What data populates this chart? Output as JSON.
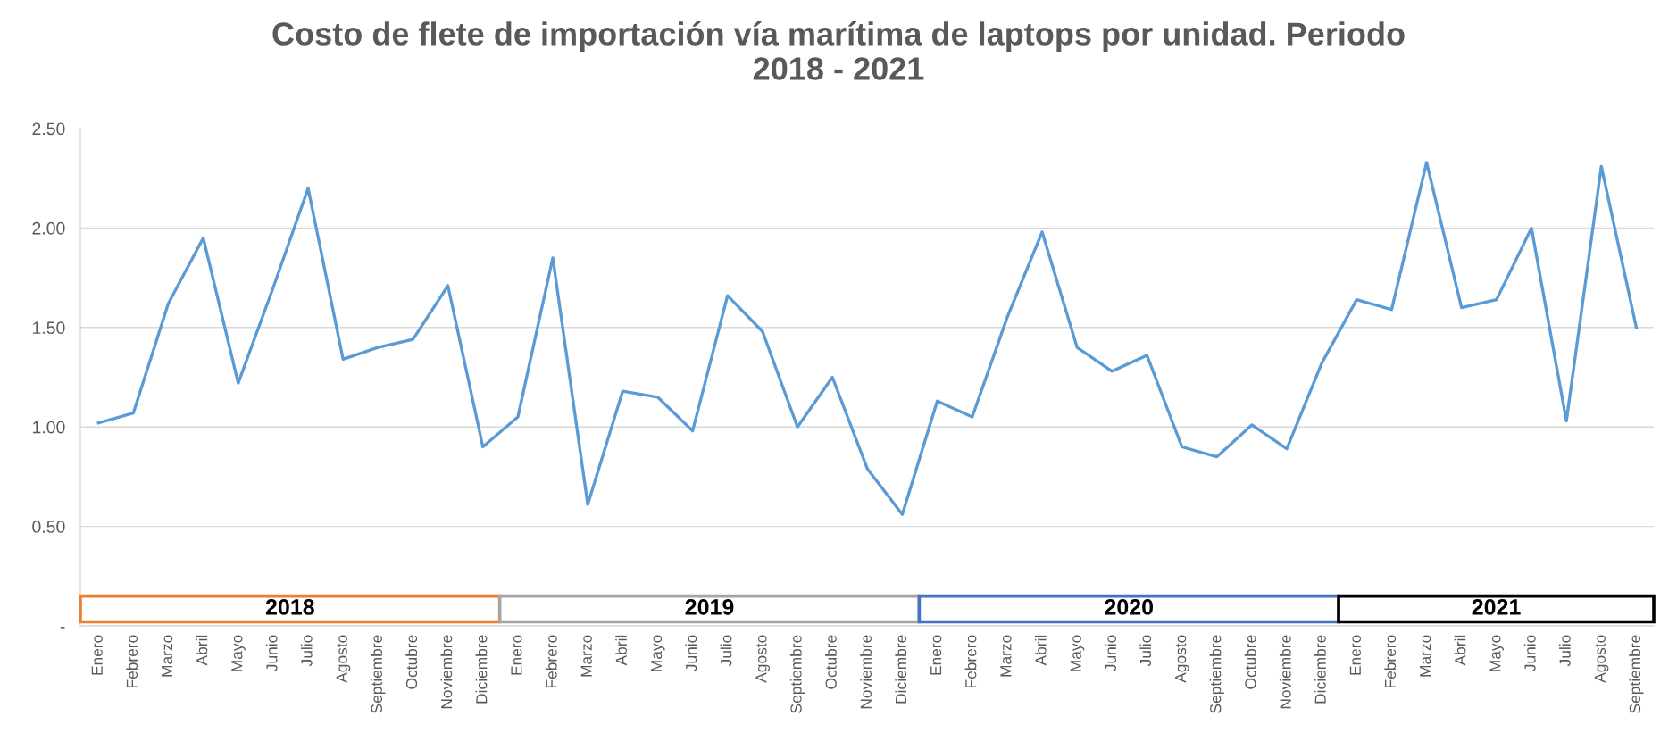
{
  "chart_data": {
    "type": "line",
    "title": "Costo de flete de importación vía marítima de laptops por unidad. Periodo\n2018 - 2021",
    "x": [
      "2018-01",
      "2018-02",
      "2018-03",
      "2018-04",
      "2018-05",
      "2018-06",
      "2018-07",
      "2018-08",
      "2018-09",
      "2018-10",
      "2018-11",
      "2018-12",
      "2019-01",
      "2019-02",
      "2019-03",
      "2019-04",
      "2019-05",
      "2019-06",
      "2019-07",
      "2019-08",
      "2019-09",
      "2019-10",
      "2019-11",
      "2019-12",
      "2020-01",
      "2020-02",
      "2020-03",
      "2020-04",
      "2020-05",
      "2020-06",
      "2020-07",
      "2020-08",
      "2020-09",
      "2020-10",
      "2020-11",
      "2020-12",
      "2021-01",
      "2021-02",
      "2021-03",
      "2021-04",
      "2021-05",
      "2021-06",
      "2021-07",
      "2021-08",
      "2021-09"
    ],
    "series": [
      {
        "color": "#5b9bd5",
        "values": [
          1.02,
          1.07,
          1.62,
          1.95,
          1.22,
          1.7,
          2.2,
          1.34,
          1.4,
          1.44,
          1.71,
          0.9,
          1.05,
          1.85,
          0.61,
          1.18,
          1.15,
          0.98,
          1.66,
          1.48,
          1.0,
          1.25,
          0.79,
          0.56,
          1.13,
          1.05,
          1.55,
          1.98,
          1.4,
          1.28,
          1.36,
          0.9,
          0.85,
          1.01,
          0.89,
          1.32,
          1.64,
          1.59,
          2.33,
          1.6,
          1.64,
          2.0,
          1.03,
          2.31,
          1.5
        ]
      }
    ],
    "xlim": [
      "2017-12-16",
      "2021-09-16"
    ],
    "xticks": [
      {
        "value": "2018-01",
        "label": "Enero"
      },
      {
        "value": "2018-02",
        "label": "Febrero"
      },
      {
        "value": "2018-03",
        "label": "Marzo"
      },
      {
        "value": "2018-04",
        "label": "Abril"
      },
      {
        "value": "2018-05",
        "label": "Mayo"
      },
      {
        "value": "2018-06",
        "label": "Junio"
      },
      {
        "value": "2018-07",
        "label": "Julio"
      },
      {
        "value": "2018-08",
        "label": "Agosto"
      },
      {
        "value": "2018-09",
        "label": "Septiembre"
      },
      {
        "value": "2018-10",
        "label": "Octubre"
      },
      {
        "value": "2018-11",
        "label": "Noviembre"
      },
      {
        "value": "2018-12",
        "label": "Diciembre"
      },
      {
        "value": "2019-01",
        "label": "Enero"
      },
      {
        "value": "2019-02",
        "label": "Febrero"
      },
      {
        "value": "2019-03",
        "label": "Marzo"
      },
      {
        "value": "2019-04",
        "label": "Abril"
      },
      {
        "value": "2019-05",
        "label": "Mayo"
      },
      {
        "value": "2019-06",
        "label": "Junio"
      },
      {
        "value": "2019-07",
        "label": "Julio"
      },
      {
        "value": "2019-08",
        "label": "Agosto"
      },
      {
        "value": "2019-09",
        "label": "Septiembre"
      },
      {
        "value": "2019-10",
        "label": "Octubre"
      },
      {
        "value": "2019-11",
        "label": "Noviembre"
      },
      {
        "value": "2019-12",
        "label": "Diciembre"
      },
      {
        "value": "2020-01",
        "label": "Enero"
      },
      {
        "value": "2020-02",
        "label": "Febrero"
      },
      {
        "value": "2020-03",
        "label": "Marzo"
      },
      {
        "value": "2020-04",
        "label": "Abril"
      },
      {
        "value": "2020-05",
        "label": "Mayo"
      },
      {
        "value": "2020-06",
        "label": "Junio"
      },
      {
        "value": "2020-07",
        "label": "Julio"
      },
      {
        "value": "2020-08",
        "label": "Agosto"
      },
      {
        "value": "2020-09",
        "label": "Septiembre"
      },
      {
        "value": "2020-10",
        "label": "Octubre"
      },
      {
        "value": "2020-11",
        "label": "Noviembre"
      },
      {
        "value": "2020-12",
        "label": "Diciembre"
      },
      {
        "value": "2021-01",
        "label": "Enero"
      },
      {
        "value": "2021-02",
        "label": "Febrero"
      },
      {
        "value": "2021-03",
        "label": "Marzo"
      },
      {
        "value": "2021-04",
        "label": "Abril"
      },
      {
        "value": "2021-05",
        "label": "Mayo"
      },
      {
        "value": "2021-06",
        "label": "Junio"
      },
      {
        "value": "2021-07",
        "label": "Julio"
      },
      {
        "value": "2021-08",
        "label": "Agosto"
      },
      {
        "value": "2021-09",
        "label": "Septiembre"
      }
    ],
    "ylim": [
      0,
      2.5
    ],
    "yticks": [
      {
        "value": 0,
        "label": "-"
      },
      {
        "value": 0.5,
        "label": "0.50"
      },
      {
        "value": 1.0,
        "label": "1.00"
      },
      {
        "value": 1.5,
        "label": "1.50"
      },
      {
        "value": 2.0,
        "label": "2.00"
      },
      {
        "value": 2.5,
        "label": "2.50"
      }
    ],
    "grid": "y",
    "marker": "none",
    "line_style": "solid",
    "bands": [
      {
        "axis": "x",
        "from": "2017-12-16",
        "to": "2018-12-16",
        "label": "2018",
        "color": "#ed7d31"
      },
      {
        "axis": "x",
        "from": "2018-12-16",
        "to": "2019-12-16",
        "label": "2019",
        "color": "#a5a5a5"
      },
      {
        "axis": "x",
        "from": "2019-12-16",
        "to": "2020-12-16",
        "label": "2020",
        "color": "#4472c4"
      },
      {
        "axis": "x",
        "from": "2020-12-16",
        "to": "2021-09-16",
        "label": "2021",
        "color": "#000000"
      }
    ]
  }
}
